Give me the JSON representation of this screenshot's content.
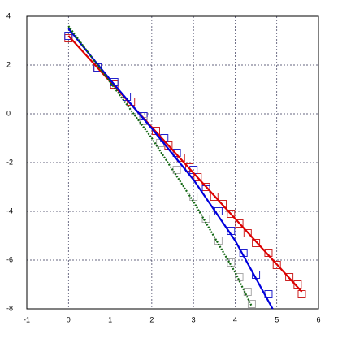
{
  "chart_data": {
    "type": "scatter",
    "grid": true,
    "xlim": [
      -1,
      6
    ],
    "ylim": [
      -8,
      4
    ],
    "xticks": [
      -1,
      0,
      1,
      2,
      3,
      4,
      5,
      6
    ],
    "yticks": [
      -8,
      -6,
      -4,
      -2,
      0,
      2,
      4
    ],
    "series": [
      {
        "mode": "markers",
        "marker": "square",
        "color": "#cc2222",
        "x": [
          0,
          0.7,
          1.1,
          1.5,
          1.8,
          2.1,
          2.4,
          2.7,
          2.9,
          3.1,
          3.3,
          3.5,
          3.7,
          3.9,
          4.1,
          4.3,
          4.5,
          4.8,
          5.0,
          5.3,
          5.5,
          5.6
        ],
        "y": [
          3.1,
          1.9,
          1.2,
          0.5,
          -0.1,
          -0.7,
          -1.3,
          -1.8,
          -2.2,
          -2.6,
          -3.0,
          -3.4,
          -3.7,
          -4.1,
          -4.5,
          -4.9,
          -5.3,
          -5.7,
          -6.2,
          -6.7,
          -7.0,
          -7.4
        ]
      },
      {
        "mode": "markers",
        "marker": "square",
        "color": "#2222cc",
        "x": [
          0,
          0.7,
          1.1,
          1.4,
          1.8,
          2.3,
          2.6,
          3.0,
          3.3,
          3.6,
          3.9,
          4.2,
          4.5,
          4.8
        ],
        "y": [
          3.2,
          1.9,
          1.3,
          0.7,
          -0.1,
          -1.0,
          -1.6,
          -2.3,
          -3.1,
          -4.0,
          -4.8,
          -5.7,
          -6.6,
          -7.4
        ]
      },
      {
        "mode": "markers",
        "marker": "square",
        "color": "#aaaaaa",
        "x": [
          1.8,
          2.2,
          2.6,
          3.0,
          3.3,
          3.6,
          3.9,
          4.1,
          4.3,
          4.4
        ],
        "y": [
          -0.3,
          -1.2,
          -2.3,
          -3.4,
          -4.3,
          -5.2,
          -6.1,
          -6.7,
          -7.3,
          -7.8
        ]
      },
      {
        "mode": "line",
        "dash": false,
        "color": "#dd0000",
        "x": [
          0,
          5.6
        ],
        "y": [
          3.2,
          -7.3
        ]
      },
      {
        "mode": "line",
        "dash": false,
        "color": "#0000dd",
        "x": [
          0,
          1,
          2,
          3,
          4,
          4.9
        ],
        "y": [
          3.5,
          1.4,
          -0.6,
          -2.7,
          -5.2,
          -8
        ]
      },
      {
        "mode": "line",
        "dash": true,
        "color": "#116611",
        "x": [
          0,
          1,
          2,
          3,
          4,
          4.4
        ],
        "y": [
          3.6,
          1.3,
          -1.0,
          -3.6,
          -6.5,
          -7.9
        ]
      }
    ]
  }
}
